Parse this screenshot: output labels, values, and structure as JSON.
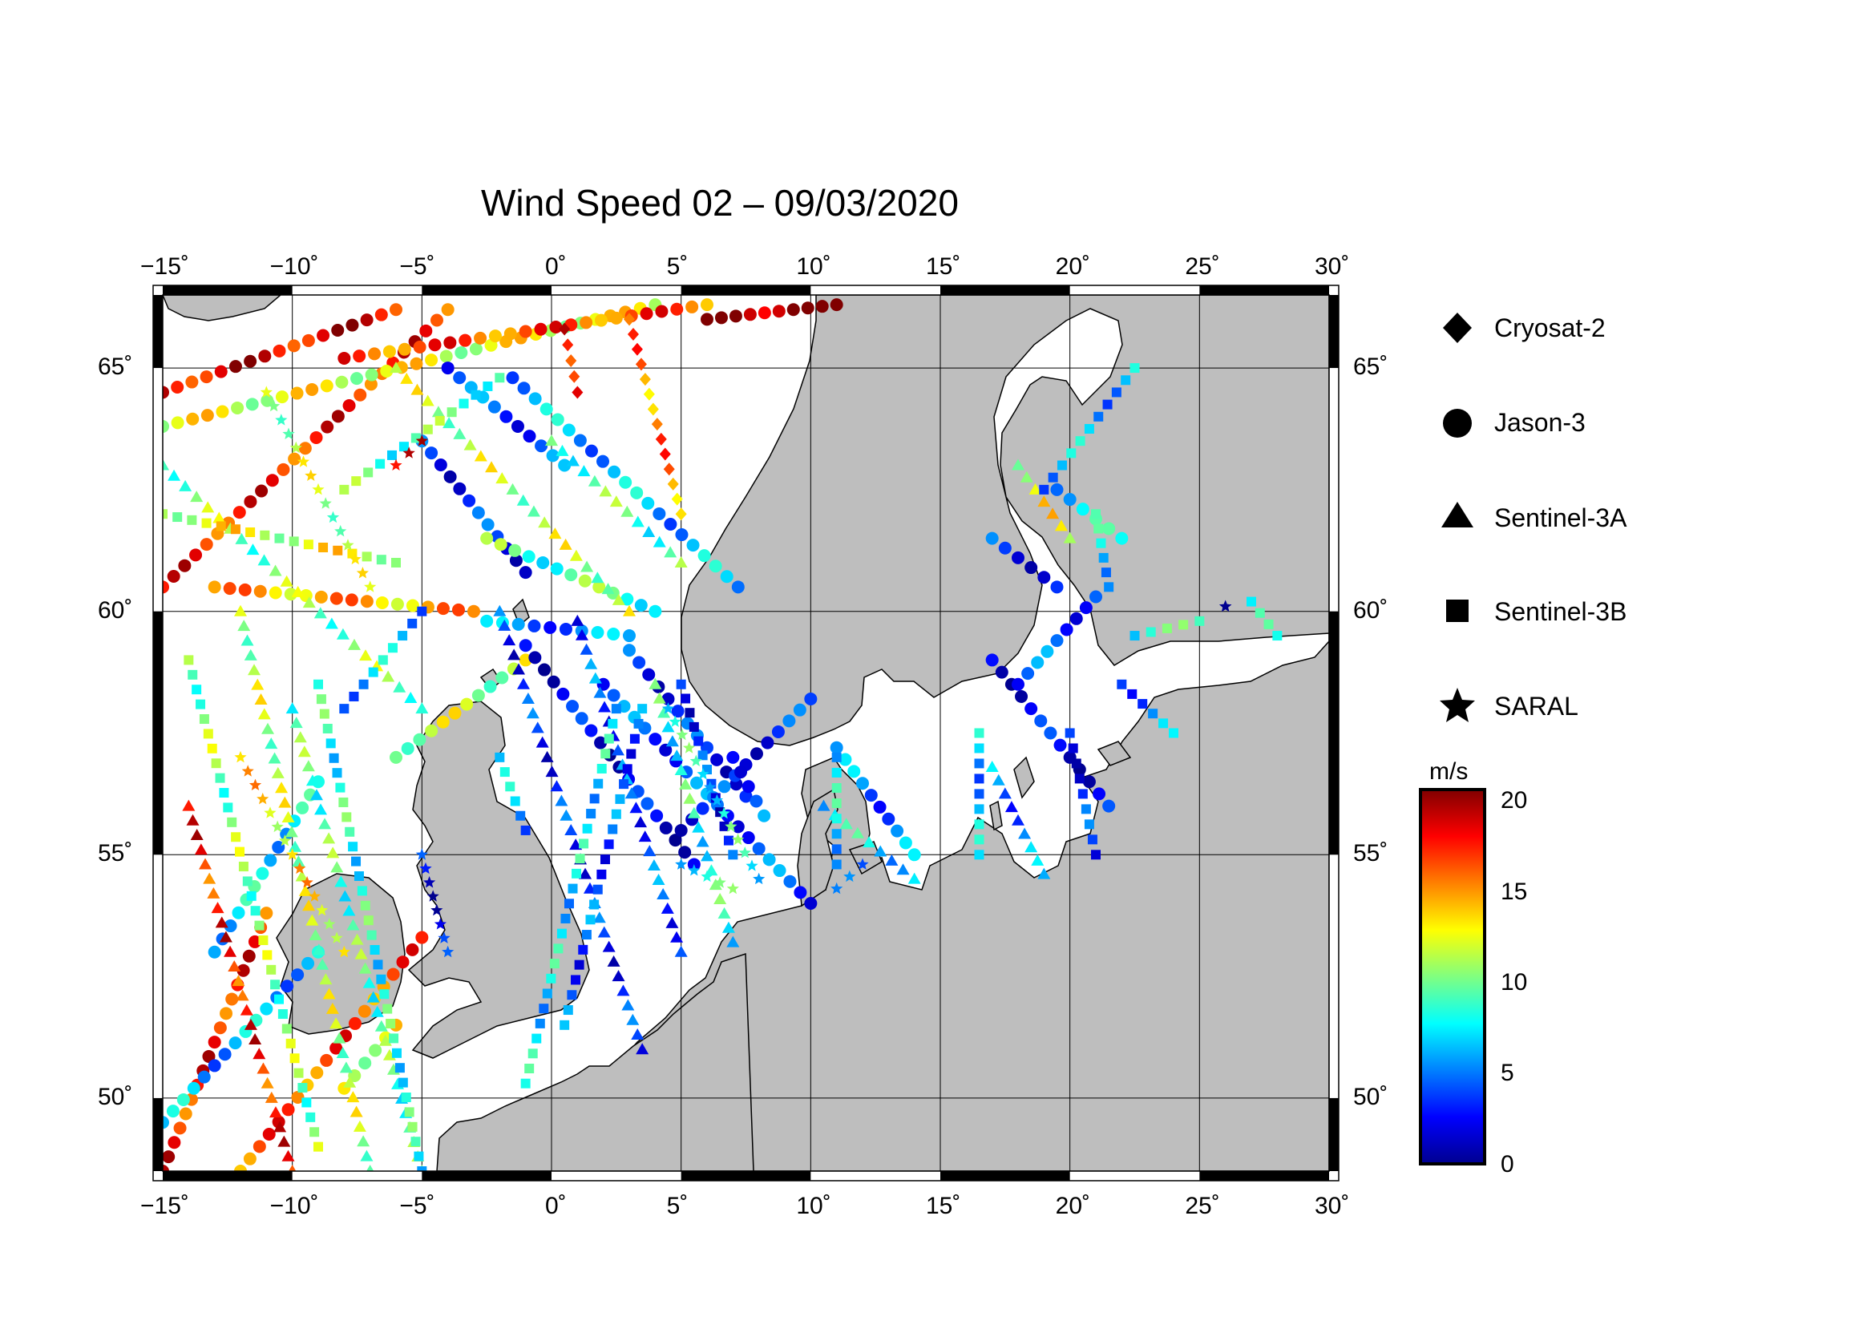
{
  "title": "Wind Speed 02 – 09/03/2020",
  "lon_ticks": [
    "−15˚",
    "−10˚",
    "−5˚",
    "0˚",
    "5˚",
    "10˚",
    "15˚",
    "20˚",
    "25˚",
    "30˚"
  ],
  "lat_ticks": [
    "65˚",
    "60˚",
    "55˚",
    "50˚"
  ],
  "legend": {
    "items": [
      {
        "label": "Cryosat-2",
        "symbol": "diamond-icon"
      },
      {
        "label": "Jason-3",
        "symbol": "circle-icon"
      },
      {
        "label": "Sentinel-3A",
        "symbol": "triangle-icon"
      },
      {
        "label": "Sentinel-3B",
        "symbol": "square-icon"
      },
      {
        "label": "SARAL",
        "symbol": "star-icon"
      }
    ]
  },
  "colorbar": {
    "unit": "m/s",
    "ticks": [
      "20",
      "15",
      "10",
      "5",
      "0"
    ],
    "range": [
      0,
      20
    ],
    "colors": [
      "#00008f",
      "#0000ff",
      "#0080ff",
      "#00ffff",
      "#80ff80",
      "#ffff00",
      "#ff8000",
      "#ff0000",
      "#800000"
    ]
  },
  "map": {
    "lon_range": [
      -15,
      30
    ],
    "lat_range": [
      48.5,
      66.5
    ],
    "land_color": "#bebebe",
    "sea_color": "#ffffff"
  },
  "chart_data": {
    "type": "scatter",
    "title": "Wind Speed 02 – 09/03/2020",
    "xlabel": "",
    "ylabel": "",
    "xlim": [
      -15,
      30
    ],
    "ylim": [
      48.5,
      66.5
    ],
    "value_range": [
      0,
      20
    ],
    "value_unit": "m/s",
    "series": [
      {
        "name": "Jason-3",
        "marker": "circle",
        "tracks": [
          {
            "from": [
              -15,
              60.5
            ],
            "to": [
              -4,
              66.2
            ],
            "speed": 17
          },
          {
            "from": [
              -15,
              64.5
            ],
            "to": [
              -6,
              66.2
            ],
            "speed": 18
          },
          {
            "from": [
              -15,
              63.8
            ],
            "to": [
              4,
              66.3
            ],
            "speed": 12
          },
          {
            "from": [
              -8,
              65.2
            ],
            "to": [
              6,
              66.3
            ],
            "speed": 16
          },
          {
            "from": [
              -12,
              48.5
            ],
            "to": [
              -5,
              53.3
            ],
            "speed": 16
          },
          {
            "from": [
              -15,
              48.5
            ],
            "to": [
              -11,
              53.8
            ],
            "speed": 17
          },
          {
            "from": [
              -13,
              53.0
            ],
            "to": [
              -9,
              56.5
            ],
            "speed": 7
          },
          {
            "from": [
              -15,
              49.5
            ],
            "to": [
              -9,
              53.0
            ],
            "speed": 6
          },
          {
            "from": [
              -8,
              50.2
            ],
            "to": [
              -6,
              51.5
            ],
            "speed": 12
          },
          {
            "from": [
              -4,
              65.0
            ],
            "to": [
              0.5,
              63.0
            ],
            "speed": 4
          },
          {
            "from": [
              -5,
              63.5
            ],
            "to": [
              -1,
              60.8
            ],
            "speed": 3
          },
          {
            "from": [
              -1.5,
              64.8
            ],
            "to": [
              7.2,
              60.5
            ],
            "speed": 6
          },
          {
            "from": [
              -2.5,
              61.5
            ],
            "to": [
              4,
              60.0
            ],
            "speed": 9
          },
          {
            "from": [
              -6,
              57.0
            ],
            "to": [
              -1,
              59.0
            ],
            "speed": 11
          },
          {
            "from": [
              -13,
              60.5
            ],
            "to": [
              -3,
              60.0
            ],
            "speed": 14
          },
          {
            "from": [
              -1,
              59.3
            ],
            "to": [
              5.5,
              54.8
            ],
            "speed": 2
          },
          {
            "from": [
              2.0,
              58.5
            ],
            "to": [
              10,
              54.0
            ],
            "speed": 4
          },
          {
            "from": [
              3,
              59.2
            ],
            "to": [
              7.5,
              56.2
            ],
            "speed": 3
          },
          {
            "from": [
              5.0,
              55.5
            ],
            "to": [
              10,
              58.2
            ],
            "speed": 3
          },
          {
            "from": [
              -2.5,
              59.8
            ],
            "to": [
              3,
              59.5
            ],
            "speed": 5
          },
          {
            "from": [
              7,
              57.0
            ],
            "to": [
              8.2,
              55.8
            ],
            "speed": 4
          },
          {
            "from": [
              11,
              57.2
            ],
            "to": [
              14,
              55.0
            ],
            "speed": 5
          },
          {
            "from": [
              17,
              59.0
            ],
            "to": [
              21.5,
              56.0
            ],
            "speed": 2
          },
          {
            "from": [
              18,
              58.5
            ],
            "to": [
              21,
              60.3
            ],
            "speed": 4
          },
          {
            "from": [
              17,
              61.5
            ],
            "to": [
              19.5,
              60.5
            ],
            "speed": 3
          },
          {
            "from": [
              19.5,
              62.5
            ],
            "to": [
              22,
              61.5
            ],
            "speed": 7
          },
          {
            "from": [
              6,
              66.0
            ],
            "to": [
              11,
              66.3
            ],
            "speed": 20
          }
        ]
      },
      {
        "name": "Sentinel-3A",
        "marker": "triangle",
        "tracks": [
          {
            "from": [
              -14,
              56.0
            ],
            "to": [
              -10,
              48.5
            ],
            "speed": 17
          },
          {
            "from": [
              -12,
              60.0
            ],
            "to": [
              -7,
              48.5
            ],
            "speed": 11
          },
          {
            "from": [
              -10,
              58.0
            ],
            "to": [
              -5,
              48.5
            ],
            "speed": 9
          },
          {
            "from": [
              -2,
              60.0
            ],
            "to": [
              3.5,
              51.0
            ],
            "speed": 3
          },
          {
            "from": [
              1,
              59.8
            ],
            "to": [
              5,
              53.0
            ],
            "speed": 4
          },
          {
            "from": [
              4,
              58.5
            ],
            "to": [
              7,
              53.2
            ],
            "speed": 8
          },
          {
            "from": [
              -15,
              63.0
            ],
            "to": [
              -5,
              58.0
            ],
            "speed": 10
          },
          {
            "from": [
              -6,
              65.0
            ],
            "to": [
              3,
              60.0
            ],
            "speed": 11
          },
          {
            "from": [
              0,
              63.5
            ],
            "to": [
              5,
              61.0
            ],
            "speed": 9
          },
          {
            "from": [
              10.5,
              56.0
            ],
            "to": [
              14,
              54.5
            ],
            "speed": 7
          },
          {
            "from": [
              17,
              56.8
            ],
            "to": [
              19,
              54.6
            ],
            "speed": 5
          },
          {
            "from": [
              18,
              63.0
            ],
            "to": [
              20,
              61.5
            ],
            "speed": 12
          }
        ]
      },
      {
        "name": "Sentinel-3B",
        "marker": "square",
        "tracks": [
          {
            "from": [
              -9,
              58.5
            ],
            "to": [
              -5,
              48.5
            ],
            "speed": 8
          },
          {
            "from": [
              -14,
              59.0
            ],
            "to": [
              -9,
              49.0
            ],
            "speed": 10
          },
          {
            "from": [
              2.5,
              58.0
            ],
            "to": [
              -1,
              50.3
            ],
            "speed": 7
          },
          {
            "from": [
              3.5,
              58.0
            ],
            "to": [
              0.5,
              51.5
            ],
            "speed": 4
          },
          {
            "from": [
              -5,
              60.0
            ],
            "to": [
              -8,
              58.0
            ],
            "speed": 6
          },
          {
            "from": [
              -8,
              62.5
            ],
            "to": [
              -2,
              64.8
            ],
            "speed": 9
          },
          {
            "from": [
              -15,
              62.0
            ],
            "to": [
              -6,
              61.0
            ],
            "speed": 12
          },
          {
            "from": [
              -2,
              57.0
            ],
            "to": [
              -1,
              55.5
            ],
            "speed": 6
          },
          {
            "from": [
              5,
              58.5
            ],
            "to": [
              7,
              55.0
            ],
            "speed": 3
          },
          {
            "from": [
              11,
              57.0
            ],
            "to": [
              11,
              54.8
            ],
            "speed": 7
          },
          {
            "from": [
              16.5,
              57.5
            ],
            "to": [
              16.5,
              55.0
            ],
            "speed": 6
          },
          {
            "from": [
              19,
              62.5
            ],
            "to": [
              22.5,
              65.0
            ],
            "speed": 6
          },
          {
            "from": [
              21,
              62.0
            ],
            "to": [
              21.5,
              60.5
            ],
            "speed": 7
          },
          {
            "from": [
              22,
              58.5
            ],
            "to": [
              24,
              57.5
            ],
            "speed": 5
          },
          {
            "from": [
              27,
              60.2
            ],
            "to": [
              28,
              59.5
            ],
            "speed": 7
          },
          {
            "from": [
              20,
              57.5
            ],
            "to": [
              21,
              55.0
            ],
            "speed": 3
          },
          {
            "from": [
              22.5,
              59.5
            ],
            "to": [
              25,
              59.8
            ],
            "speed": 8
          }
        ]
      },
      {
        "name": "SARAL",
        "marker": "star",
        "tracks": [
          {
            "from": [
              -12,
              57.0
            ],
            "to": [
              -8,
              53.0
            ],
            "speed": 13
          },
          {
            "from": [
              -11,
              64.5
            ],
            "to": [
              -7,
              60.5
            ],
            "speed": 11
          },
          {
            "from": [
              4.5,
              58.0
            ],
            "to": [
              8,
              54.5
            ],
            "speed": 8
          },
          {
            "from": [
              -5,
              55.0
            ],
            "to": [
              -4,
              53.0
            ],
            "speed": 2
          },
          {
            "from": [
              5,
              54.8
            ],
            "to": [
              7,
              54.3
            ],
            "speed": 8
          },
          {
            "from": [
              11,
              54.3
            ],
            "to": [
              12,
              54.8
            ],
            "speed": 3
          },
          {
            "from": [
              26,
              60.1
            ],
            "to": [
              26,
              60.1
            ],
            "speed": 2
          },
          {
            "from": [
              -6,
              63.0
            ],
            "to": [
              -5,
              63.5
            ],
            "speed": 17
          }
        ]
      },
      {
        "name": "Cryosat-2",
        "marker": "diamond",
        "tracks": [
          {
            "from": [
              3,
              66.0
            ],
            "to": [
              5,
              62.0
            ],
            "speed": 15
          },
          {
            "from": [
              0.5,
              65.8
            ],
            "to": [
              1,
              64.5
            ],
            "speed": 18
          }
        ]
      }
    ]
  }
}
